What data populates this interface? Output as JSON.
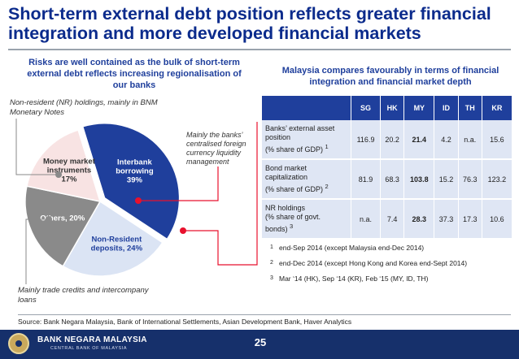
{
  "slide": {
    "title": "Short-term external debt position reflects greater financial integration and more developed financial markets",
    "left_heading": "Risks are well contained as the bulk of short-term external debt reflects increasing regionalisation of our banks",
    "right_heading": "Malaysia compares favourably in terms of financial integration and financial market depth",
    "source": "Source: Bank Negara Malaysia, Bank of International Settlements, Asian Development Bank, Haver Analytics",
    "page_number": "25"
  },
  "annotations": {
    "nr_holdings": "Non-resident (NR) holdings, mainly in BNM Monetary Notes",
    "banks_liquidity": "Mainly the banks’ centralised foreign currency liquidity management",
    "trade_credits": "Mainly trade credits and intercompany loans"
  },
  "chart_data": {
    "type": "pie",
    "title": "",
    "slices": [
      {
        "name": "Interbank borrowing",
        "label_line1": "Interbank",
        "label_line2": "borrowing",
        "pct_label": "39%",
        "value": 39,
        "color": "#1f3f9c",
        "text_color": "#ffffff"
      },
      {
        "name": "Non-Resident deposits",
        "label_line1": "Non-Resident",
        "label_line2": "deposits, 24%",
        "pct_label": "",
        "value": 24,
        "color": "#dbe4f4",
        "text_color": "#1f3f9c"
      },
      {
        "name": "Others",
        "label_line1": "Others, 20%",
        "label_line2": "",
        "pct_label": "",
        "value": 20,
        "color": "#8a8a8a",
        "text_color": "#ffffff"
      },
      {
        "name": "Money market instruments",
        "label_line1": "Money market",
        "label_line2": "instruments",
        "pct_label": "17%",
        "value": 17,
        "color": "#f8e3e3",
        "text_color": "#333333"
      }
    ],
    "callout_color": "#e8112d"
  },
  "table": {
    "columns": [
      "",
      "SG",
      "HK",
      "MY",
      "ID",
      "TH",
      "KR"
    ],
    "rows": [
      {
        "label_l1": "Banks’ external asset",
        "label_l2": "position",
        "label_l3": "(% share of GDP)",
        "sup": "1",
        "values": [
          "116.9",
          "20.2",
          "21.4",
          "4.2",
          "n.a.",
          "15.6"
        ]
      },
      {
        "label_l1": "Bond market",
        "label_l2": "capitalization",
        "label_l3": "(% share of GDP)",
        "sup": "2",
        "values": [
          "81.9",
          "68.3",
          "103.8",
          "15.2",
          "76.3",
          "123.2"
        ]
      },
      {
        "label_l1": "NR holdings",
        "label_l2": "(% share of govt.",
        "label_l3": "bonds)",
        "sup": "3",
        "values": [
          "n.a.",
          "7.4",
          "28.3",
          "37.3",
          "17.3",
          "10.6"
        ]
      }
    ]
  },
  "footnotes": [
    {
      "num": "1",
      "text": "end-Sep 2014 (except Malaysia end-Dec 2014)"
    },
    {
      "num": "2",
      "text": "end-Dec 2014 (except Hong Kong and Korea end-Sept 2014)"
    },
    {
      "num": "3",
      "text": "Mar ‘14 (HK), Sep ‘14 (KR), Feb ‘15 (MY, ID, TH)"
    }
  ],
  "footer": {
    "bank_name": "BANK NEGARA MALAYSIA",
    "bank_subtitle": "CENTRAL BANK OF MALAYSIA"
  }
}
